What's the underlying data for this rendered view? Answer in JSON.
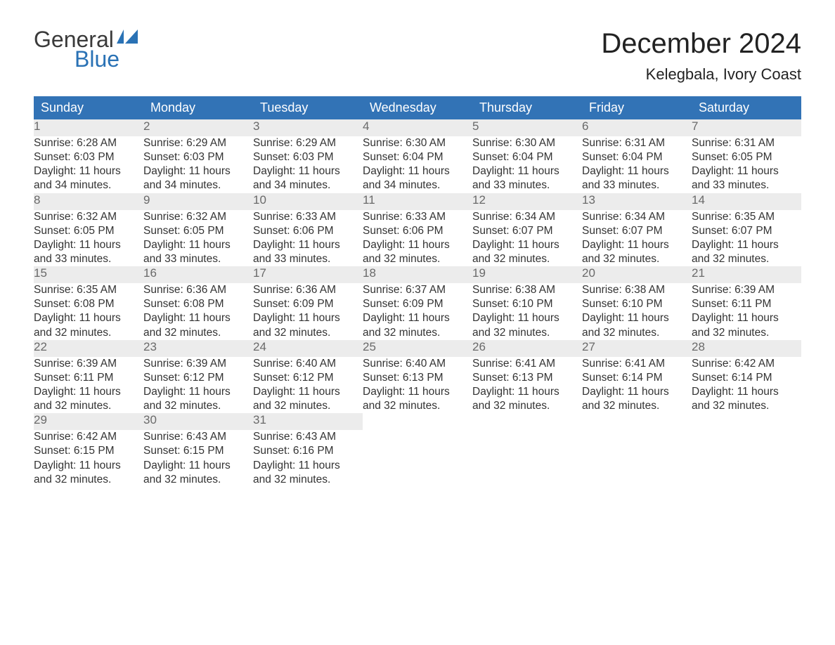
{
  "logo": {
    "word1": "General",
    "word2": "Blue",
    "flag_color": "#2a72b5"
  },
  "title": "December 2024",
  "location": "Kelegbala, Ivory Coast",
  "colors": {
    "header_bg": "#3273b6",
    "header_text": "#ffffff",
    "daynum_bg": "#ececec",
    "daynum_text": "#6a6a6a",
    "body_text": "#333333",
    "page_bg": "#ffffff",
    "title_text": "#222222"
  },
  "day_headers": [
    "Sunday",
    "Monday",
    "Tuesday",
    "Wednesday",
    "Thursday",
    "Friday",
    "Saturday"
  ],
  "weeks": [
    [
      {
        "n": "1",
        "sr": "Sunrise: 6:28 AM",
        "ss": "Sunset: 6:03 PM",
        "d1": "Daylight: 11 hours",
        "d2": "and 34 minutes."
      },
      {
        "n": "2",
        "sr": "Sunrise: 6:29 AM",
        "ss": "Sunset: 6:03 PM",
        "d1": "Daylight: 11 hours",
        "d2": "and 34 minutes."
      },
      {
        "n": "3",
        "sr": "Sunrise: 6:29 AM",
        "ss": "Sunset: 6:03 PM",
        "d1": "Daylight: 11 hours",
        "d2": "and 34 minutes."
      },
      {
        "n": "4",
        "sr": "Sunrise: 6:30 AM",
        "ss": "Sunset: 6:04 PM",
        "d1": "Daylight: 11 hours",
        "d2": "and 34 minutes."
      },
      {
        "n": "5",
        "sr": "Sunrise: 6:30 AM",
        "ss": "Sunset: 6:04 PM",
        "d1": "Daylight: 11 hours",
        "d2": "and 33 minutes."
      },
      {
        "n": "6",
        "sr": "Sunrise: 6:31 AM",
        "ss": "Sunset: 6:04 PM",
        "d1": "Daylight: 11 hours",
        "d2": "and 33 minutes."
      },
      {
        "n": "7",
        "sr": "Sunrise: 6:31 AM",
        "ss": "Sunset: 6:05 PM",
        "d1": "Daylight: 11 hours",
        "d2": "and 33 minutes."
      }
    ],
    [
      {
        "n": "8",
        "sr": "Sunrise: 6:32 AM",
        "ss": "Sunset: 6:05 PM",
        "d1": "Daylight: 11 hours",
        "d2": "and 33 minutes."
      },
      {
        "n": "9",
        "sr": "Sunrise: 6:32 AM",
        "ss": "Sunset: 6:05 PM",
        "d1": "Daylight: 11 hours",
        "d2": "and 33 minutes."
      },
      {
        "n": "10",
        "sr": "Sunrise: 6:33 AM",
        "ss": "Sunset: 6:06 PM",
        "d1": "Daylight: 11 hours",
        "d2": "and 33 minutes."
      },
      {
        "n": "11",
        "sr": "Sunrise: 6:33 AM",
        "ss": "Sunset: 6:06 PM",
        "d1": "Daylight: 11 hours",
        "d2": "and 32 minutes."
      },
      {
        "n": "12",
        "sr": "Sunrise: 6:34 AM",
        "ss": "Sunset: 6:07 PM",
        "d1": "Daylight: 11 hours",
        "d2": "and 32 minutes."
      },
      {
        "n": "13",
        "sr": "Sunrise: 6:34 AM",
        "ss": "Sunset: 6:07 PM",
        "d1": "Daylight: 11 hours",
        "d2": "and 32 minutes."
      },
      {
        "n": "14",
        "sr": "Sunrise: 6:35 AM",
        "ss": "Sunset: 6:07 PM",
        "d1": "Daylight: 11 hours",
        "d2": "and 32 minutes."
      }
    ],
    [
      {
        "n": "15",
        "sr": "Sunrise: 6:35 AM",
        "ss": "Sunset: 6:08 PM",
        "d1": "Daylight: 11 hours",
        "d2": "and 32 minutes."
      },
      {
        "n": "16",
        "sr": "Sunrise: 6:36 AM",
        "ss": "Sunset: 6:08 PM",
        "d1": "Daylight: 11 hours",
        "d2": "and 32 minutes."
      },
      {
        "n": "17",
        "sr": "Sunrise: 6:36 AM",
        "ss": "Sunset: 6:09 PM",
        "d1": "Daylight: 11 hours",
        "d2": "and 32 minutes."
      },
      {
        "n": "18",
        "sr": "Sunrise: 6:37 AM",
        "ss": "Sunset: 6:09 PM",
        "d1": "Daylight: 11 hours",
        "d2": "and 32 minutes."
      },
      {
        "n": "19",
        "sr": "Sunrise: 6:38 AM",
        "ss": "Sunset: 6:10 PM",
        "d1": "Daylight: 11 hours",
        "d2": "and 32 minutes."
      },
      {
        "n": "20",
        "sr": "Sunrise: 6:38 AM",
        "ss": "Sunset: 6:10 PM",
        "d1": "Daylight: 11 hours",
        "d2": "and 32 minutes."
      },
      {
        "n": "21",
        "sr": "Sunrise: 6:39 AM",
        "ss": "Sunset: 6:11 PM",
        "d1": "Daylight: 11 hours",
        "d2": "and 32 minutes."
      }
    ],
    [
      {
        "n": "22",
        "sr": "Sunrise: 6:39 AM",
        "ss": "Sunset: 6:11 PM",
        "d1": "Daylight: 11 hours",
        "d2": "and 32 minutes."
      },
      {
        "n": "23",
        "sr": "Sunrise: 6:39 AM",
        "ss": "Sunset: 6:12 PM",
        "d1": "Daylight: 11 hours",
        "d2": "and 32 minutes."
      },
      {
        "n": "24",
        "sr": "Sunrise: 6:40 AM",
        "ss": "Sunset: 6:12 PM",
        "d1": "Daylight: 11 hours",
        "d2": "and 32 minutes."
      },
      {
        "n": "25",
        "sr": "Sunrise: 6:40 AM",
        "ss": "Sunset: 6:13 PM",
        "d1": "Daylight: 11 hours",
        "d2": "and 32 minutes."
      },
      {
        "n": "26",
        "sr": "Sunrise: 6:41 AM",
        "ss": "Sunset: 6:13 PM",
        "d1": "Daylight: 11 hours",
        "d2": "and 32 minutes."
      },
      {
        "n": "27",
        "sr": "Sunrise: 6:41 AM",
        "ss": "Sunset: 6:14 PM",
        "d1": "Daylight: 11 hours",
        "d2": "and 32 minutes."
      },
      {
        "n": "28",
        "sr": "Sunrise: 6:42 AM",
        "ss": "Sunset: 6:14 PM",
        "d1": "Daylight: 11 hours",
        "d2": "and 32 minutes."
      }
    ],
    [
      {
        "n": "29",
        "sr": "Sunrise: 6:42 AM",
        "ss": "Sunset: 6:15 PM",
        "d1": "Daylight: 11 hours",
        "d2": "and 32 minutes."
      },
      {
        "n": "30",
        "sr": "Sunrise: 6:43 AM",
        "ss": "Sunset: 6:15 PM",
        "d1": "Daylight: 11 hours",
        "d2": "and 32 minutes."
      },
      {
        "n": "31",
        "sr": "Sunrise: 6:43 AM",
        "ss": "Sunset: 6:16 PM",
        "d1": "Daylight: 11 hours",
        "d2": "and 32 minutes."
      },
      null,
      null,
      null,
      null
    ]
  ]
}
